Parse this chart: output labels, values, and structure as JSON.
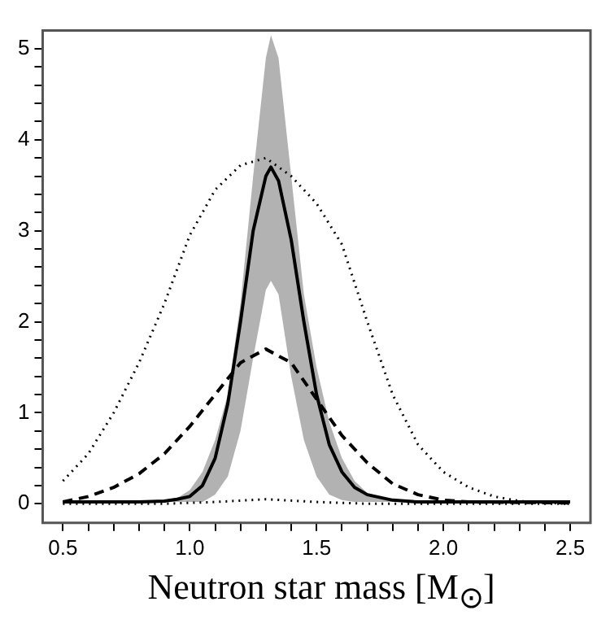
{
  "chart_data": {
    "type": "line",
    "xlabel": "Neutron star mass [M$_{⊙}$]",
    "xlim": [
      0.42,
      2.58
    ],
    "ylim": [
      -0.21,
      5.2
    ],
    "xticks": [
      0.5,
      {
        "value": 0.6,
        "label": null
      },
      {
        "value": 0.7,
        "label": null
      },
      {
        "value": 0.8,
        "label": null
      },
      {
        "value": 0.9,
        "label": null
      },
      {
        "value": 1.0,
        "label": "1.0"
      },
      {
        "value": 1.1,
        "label": null
      },
      {
        "value": 1.2,
        "label": null
      },
      {
        "value": 1.3,
        "label": null
      },
      {
        "value": 1.4,
        "label": null
      },
      1.5,
      {
        "value": 1.6,
        "label": null
      },
      {
        "value": 1.7,
        "label": null
      },
      {
        "value": 1.8,
        "label": null
      },
      {
        "value": 1.9,
        "label": null
      },
      {
        "value": 2.0,
        "label": "2.0"
      },
      {
        "value": 2.1,
        "label": null
      },
      {
        "value": 2.2,
        "label": null
      },
      {
        "value": 2.3,
        "label": null
      },
      {
        "value": 2.4,
        "label": null
      },
      2.5
    ],
    "yticks": [
      0,
      {
        "value": 0.2,
        "label": null
      },
      {
        "value": 0.4,
        "label": null
      },
      {
        "value": 0.6,
        "label": null
      },
      {
        "value": 0.8,
        "label": null
      },
      1,
      {
        "value": 1.2,
        "label": null
      },
      {
        "value": 1.4,
        "label": null
      },
      {
        "value": 1.6,
        "label": null
      },
      {
        "value": 1.8,
        "label": null
      },
      2,
      {
        "value": 2.2,
        "label": null
      },
      {
        "value": 2.4,
        "label": null
      },
      {
        "value": 2.6,
        "label": null
      },
      {
        "value": 2.8,
        "label": null
      },
      3,
      {
        "value": 3.2,
        "label": null
      },
      {
        "value": 3.4,
        "label": null
      },
      {
        "value": 3.6,
        "label": null
      },
      {
        "value": 3.8,
        "label": null
      },
      4,
      {
        "value": 4.2,
        "label": null
      },
      {
        "value": 4.4,
        "label": null
      },
      {
        "value": 4.6,
        "label": null
      },
      {
        "value": 4.8,
        "label": null
      },
      5
    ],
    "grid": false,
    "legend": false,
    "marker": "none",
    "series": [
      {
        "color": "#000000",
        "line_style": "solid",
        "x": [
          0.5,
          0.8,
          0.9,
          0.95,
          1.0,
          1.05,
          1.1,
          1.15,
          1.2,
          1.25,
          1.3,
          1.32,
          1.35,
          1.4,
          1.45,
          1.5,
          1.55,
          1.6,
          1.65,
          1.7,
          1.8,
          1.9,
          2.0,
          2.5
        ],
        "values": [
          0.02,
          0.02,
          0.03,
          0.05,
          0.08,
          0.2,
          0.5,
          1.1,
          2.0,
          3.0,
          3.6,
          3.7,
          3.55,
          2.9,
          2.0,
          1.2,
          0.65,
          0.35,
          0.18,
          0.1,
          0.04,
          0.02,
          0.02,
          0.02
        ],
        "upper": [
          0.02,
          0.02,
          0.03,
          0.06,
          0.15,
          0.35,
          0.7,
          1.2,
          2.2,
          3.6,
          4.9,
          5.15,
          4.9,
          3.6,
          2.3,
          1.5,
          0.9,
          0.5,
          0.25,
          0.12,
          0.04,
          0.02,
          0.02,
          0.02
        ],
        "lower": [
          0.02,
          0.02,
          0.02,
          0.02,
          0.02,
          0.02,
          0.1,
          0.3,
          0.8,
          1.6,
          2.35,
          2.45,
          2.3,
          1.4,
          0.7,
          0.3,
          0.1,
          0.04,
          0.02,
          0.02,
          0.02,
          0.02,
          0.02,
          0.02
        ]
      },
      {
        "color": "#000000",
        "line_style": "dashed",
        "x": [
          0.5,
          0.6,
          0.7,
          0.8,
          0.9,
          1.0,
          1.1,
          1.2,
          1.3,
          1.4,
          1.5,
          1.6,
          1.7,
          1.8,
          1.9,
          2.0,
          2.1,
          2.5
        ],
        "values": [
          0.02,
          0.08,
          0.18,
          0.33,
          0.55,
          0.85,
          1.2,
          1.55,
          1.7,
          1.55,
          1.15,
          0.75,
          0.45,
          0.22,
          0.1,
          0.04,
          0.02,
          0.01
        ]
      },
      {
        "color": "#000000",
        "line_style": "dotted",
        "x": [
          0.5,
          0.6,
          0.7,
          0.8,
          0.9,
          1.0,
          1.1,
          1.2,
          1.3,
          1.4,
          1.5,
          1.6,
          1.7,
          1.8,
          1.9,
          2.0,
          2.1,
          2.2,
          2.3,
          2.4,
          2.5
        ],
        "values": [
          0.25,
          0.55,
          1.0,
          1.55,
          2.2,
          2.95,
          3.45,
          3.72,
          3.8,
          3.6,
          3.3,
          2.85,
          2.0,
          1.2,
          0.65,
          0.35,
          0.18,
          0.08,
          0.03,
          0.01,
          0
        ]
      },
      {
        "color": "#000000",
        "line_style": "dotted",
        "x": [
          0.5,
          0.9,
          1.1,
          1.3,
          1.5,
          1.7,
          2.5
        ],
        "values": [
          0,
          0,
          0.02,
          0.05,
          0.02,
          0,
          0
        ]
      }
    ]
  }
}
